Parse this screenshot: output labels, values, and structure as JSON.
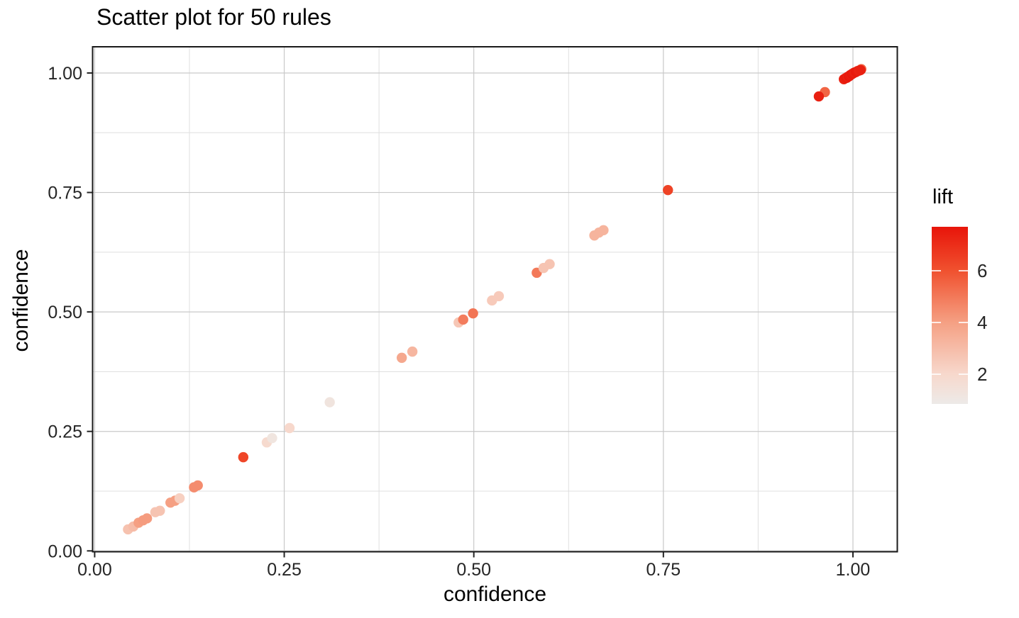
{
  "chart_data": {
    "type": "scatter",
    "title": "Scatter plot for 50 rules",
    "rule_count": 50,
    "xlabel": "confidence",
    "ylabel": "confidence",
    "xlim": [
      -0.003,
      1.058
    ],
    "ylim": [
      -0.003,
      1.058
    ],
    "grid": true,
    "x_ticks": {
      "values": [
        0,
        0.25,
        0.5,
        0.75,
        1
      ],
      "labels": [
        "0.00",
        "0.25",
        "0.50",
        "0.75",
        "1.00"
      ]
    },
    "y_ticks": {
      "values": [
        0,
        0.25,
        0.5,
        0.75,
        1
      ],
      "labels": [
        "0.00",
        "0.25",
        "0.50",
        "0.75",
        "1.00"
      ]
    },
    "x_minor": [
      0.125,
      0.375,
      0.625,
      0.875
    ],
    "y_minor": [
      0.125,
      0.375,
      0.625,
      0.875
    ],
    "legend": {
      "title": "lift",
      "position": "right",
      "tick_values": [
        2,
        4,
        6
      ],
      "tick_labels": [
        "2",
        "4",
        "6"
      ],
      "domain": [
        0.85,
        7.7
      ],
      "gradient": [
        {
          "lift": 0.85,
          "color": "#EDEAE8"
        },
        {
          "lift": 2.0,
          "color": "#F7D8CC"
        },
        {
          "lift": 4.0,
          "color": "#F5A083"
        },
        {
          "lift": 6.0,
          "color": "#F0512F"
        },
        {
          "lift": 7.7,
          "color": "#E8150A"
        }
      ]
    },
    "colors": {
      "panel_border": "#1a1a1a",
      "grid_major": "#c9c9c9",
      "grid_minor": "#dfdfdf",
      "tick_text": "#262626",
      "background": "#ffffff"
    },
    "points": [
      {
        "x": 0.044,
        "y": 0.045,
        "lift": 2.8
      },
      {
        "x": 0.051,
        "y": 0.051,
        "lift": 3.0
      },
      {
        "x": 0.058,
        "y": 0.059,
        "lift": 4.0
      },
      {
        "x": 0.064,
        "y": 0.064,
        "lift": 4.1
      },
      {
        "x": 0.069,
        "y": 0.068,
        "lift": 4.1
      },
      {
        "x": 0.08,
        "y": 0.081,
        "lift": 2.7
      },
      {
        "x": 0.086,
        "y": 0.084,
        "lift": 2.7
      },
      {
        "x": 0.1,
        "y": 0.101,
        "lift": 4.0
      },
      {
        "x": 0.106,
        "y": 0.105,
        "lift": 4.0
      },
      {
        "x": 0.112,
        "y": 0.11,
        "lift": 2.3
      },
      {
        "x": 0.131,
        "y": 0.133,
        "lift": 4.5
      },
      {
        "x": 0.136,
        "y": 0.137,
        "lift": 4.5
      },
      {
        "x": 0.196,
        "y": 0.196,
        "lift": 6.3
      },
      {
        "x": 0.227,
        "y": 0.227,
        "lift": 1.9
      },
      {
        "x": 0.234,
        "y": 0.236,
        "lift": 1.2
      },
      {
        "x": 0.257,
        "y": 0.257,
        "lift": 2.0
      },
      {
        "x": 0.31,
        "y": 0.311,
        "lift": 1.25
      },
      {
        "x": 0.405,
        "y": 0.404,
        "lift": 3.7
      },
      {
        "x": 0.419,
        "y": 0.417,
        "lift": 3.2
      },
      {
        "x": 0.48,
        "y": 0.478,
        "lift": 2.6
      },
      {
        "x": 0.486,
        "y": 0.484,
        "lift": 4.9
      },
      {
        "x": 0.499,
        "y": 0.497,
        "lift": 5.1
      },
      {
        "x": 0.524,
        "y": 0.524,
        "lift": 2.5
      },
      {
        "x": 0.533,
        "y": 0.533,
        "lift": 2.5
      },
      {
        "x": 0.583,
        "y": 0.582,
        "lift": 5.0
      },
      {
        "x": 0.592,
        "y": 0.592,
        "lift": 2.7
      },
      {
        "x": 0.6,
        "y": 0.6,
        "lift": 2.7
      },
      {
        "x": 0.659,
        "y": 0.66,
        "lift": 3.3
      },
      {
        "x": 0.665,
        "y": 0.666,
        "lift": 3.3
      },
      {
        "x": 0.671,
        "y": 0.671,
        "lift": 3.3
      },
      {
        "x": 0.756,
        "y": 0.755,
        "lift": 6.4
      },
      {
        "x": 0.963,
        "y": 0.96,
        "lift": 5.5
      },
      {
        "x": 0.955,
        "y": 0.951,
        "lift": 7.4
      },
      {
        "x": 0.988,
        "y": 0.987,
        "lift": 7.3
      },
      {
        "x": 0.99,
        "y": 0.989,
        "lift": 7.5
      },
      {
        "x": 0.992,
        "y": 0.99,
        "lift": 7.6
      },
      {
        "x": 0.993,
        "y": 0.992,
        "lift": 7.4
      },
      {
        "x": 0.995,
        "y": 0.993,
        "lift": 7.7
      },
      {
        "x": 0.996,
        "y": 0.995,
        "lift": 7.5
      },
      {
        "x": 0.997,
        "y": 0.996,
        "lift": 7.6
      },
      {
        "x": 0.998,
        "y": 0.997,
        "lift": 7.4
      },
      {
        "x": 1.011,
        "y": 1.008,
        "lift": 5.5
      },
      {
        "x": 0.999,
        "y": 0.998,
        "lift": 7.7
      },
      {
        "x": 1.0,
        "y": 0.999,
        "lift": 7.5
      },
      {
        "x": 1.001,
        "y": 1.0,
        "lift": 7.6
      },
      {
        "x": 1.002,
        "y": 1.001,
        "lift": 7.4
      },
      {
        "x": 1.004,
        "y": 1.002,
        "lift": 7.6
      },
      {
        "x": 1.006,
        "y": 1.004,
        "lift": 7.5
      },
      {
        "x": 1.008,
        "y": 1.005,
        "lift": 7.3
      },
      {
        "x": 1.01,
        "y": 1.006,
        "lift": 7.4
      }
    ]
  }
}
